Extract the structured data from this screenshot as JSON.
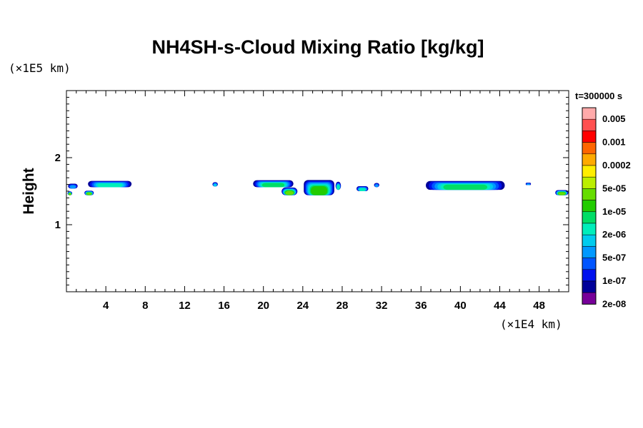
{
  "chart_data": {
    "type": "heatmap",
    "title": "NH4SH-s-Cloud Mixing Ratio [kg/kg]",
    "xlabel": "",
    "ylabel": "Height",
    "x_unit": "(×1E4 km)",
    "y_unit": "(×1E5 km)",
    "time_label": "t=300000 s",
    "xlim": [
      0,
      51
    ],
    "ylim": [
      0,
      3
    ],
    "x_ticks": [
      4,
      8,
      12,
      16,
      20,
      24,
      28,
      32,
      36,
      40,
      44,
      48
    ],
    "y_ticks": [
      1,
      2
    ],
    "grid": false,
    "legend": {
      "placement": "right",
      "labels": [
        "0.005",
        "0.001",
        "0.0002",
        "5e-05",
        "1e-05",
        "2e-06",
        "5e-07",
        "1e-07",
        "2e-08"
      ],
      "colors": [
        "#ffaaaa",
        "#ff5050",
        "#ff0000",
        "#ff6600",
        "#ffaa00",
        "#ffee00",
        "#bbee00",
        "#66dd00",
        "#22cc00",
        "#00dd66",
        "#00eebb",
        "#00ccee",
        "#0099ff",
        "#0055ff",
        "#0011ee",
        "#000099",
        "#770099"
      ]
    },
    "cloud_patches": [
      {
        "x": [
          0.1,
          1.2
        ],
        "y": [
          1.54,
          1.62
        ],
        "level": 5
      },
      {
        "x": [
          2.0,
          6.8
        ],
        "y": [
          1.56,
          1.66
        ],
        "level": 7
      },
      {
        "x": [
          0.1,
          0.6
        ],
        "y": [
          1.44,
          1.5
        ],
        "level": 10
      },
      {
        "x": [
          1.8,
          2.8
        ],
        "y": [
          1.44,
          1.51
        ],
        "level": 10
      },
      {
        "x": [
          14.8,
          15.4
        ],
        "y": [
          1.57,
          1.64
        ],
        "level": 6
      },
      {
        "x": [
          18.8,
          23.2
        ],
        "y": [
          1.56,
          1.67
        ],
        "level": 8
      },
      {
        "x": [
          21.8,
          23.5
        ],
        "y": [
          1.44,
          1.56
        ],
        "level": 10
      },
      {
        "x": [
          24.0,
          27.3
        ],
        "y": [
          1.44,
          1.68
        ],
        "level": 9
      },
      {
        "x": [
          27.3,
          27.9
        ],
        "y": [
          1.52,
          1.65
        ],
        "level": 7
      },
      {
        "x": [
          29.4,
          30.7
        ],
        "y": [
          1.5,
          1.58
        ],
        "level": 7
      },
      {
        "x": [
          31.2,
          31.8
        ],
        "y": [
          1.56,
          1.63
        ],
        "level": 5
      },
      {
        "x": [
          36.2,
          44.8
        ],
        "y": [
          1.52,
          1.66
        ],
        "level": 8
      },
      {
        "x": [
          46.6,
          47.2
        ],
        "y": [
          1.59,
          1.63
        ],
        "level": 5
      },
      {
        "x": [
          49.6,
          51.0
        ],
        "y": [
          1.44,
          1.52
        ],
        "level": 10
      }
    ]
  }
}
